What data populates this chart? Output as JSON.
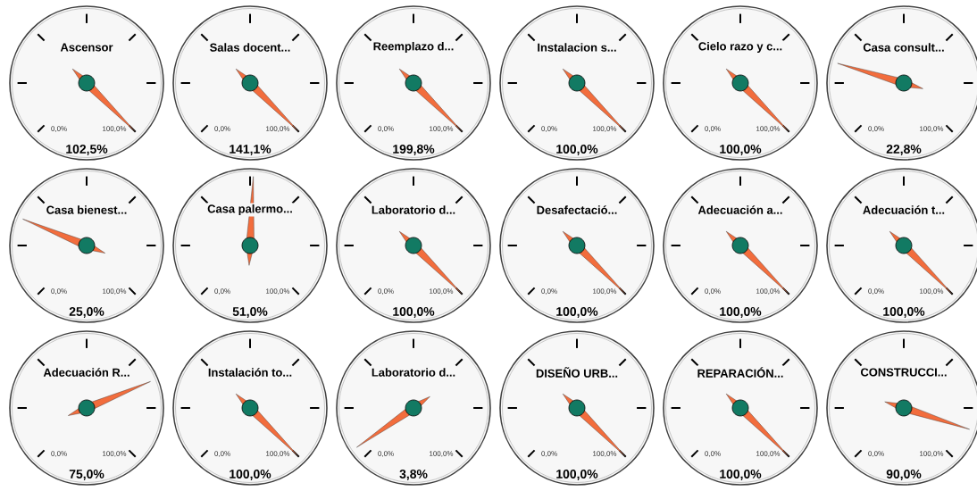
{
  "chart_data": [
    {
      "type": "other",
      "title": "Ascensor",
      "values": [
        102.5
      ],
      "value_labels": [
        "102,5%"
      ],
      "annotations": [
        "0,0%",
        "100,0%"
      ]
    },
    {
      "type": "other",
      "title": "Salas docent...",
      "values": [
        141.1
      ],
      "value_labels": [
        "141,1%"
      ],
      "annotations": [
        "0,0%",
        "100,0%"
      ]
    },
    {
      "type": "other",
      "title": "Reemplazo d...",
      "values": [
        199.8
      ],
      "value_labels": [
        "199,8%"
      ],
      "annotations": [
        "0,0%",
        "100,0%"
      ]
    },
    {
      "type": "other",
      "title": "Instalacion s...",
      "values": [
        100.0
      ],
      "value_labels": [
        "100,0%"
      ],
      "annotations": [
        "0,0%",
        "100,0%"
      ]
    },
    {
      "type": "other",
      "title": "Cielo razo y c...",
      "values": [
        100.0
      ],
      "value_labels": [
        "100,0%"
      ],
      "annotations": [
        "0,0%",
        "100,0%"
      ]
    },
    {
      "type": "other",
      "title": "Casa consult...",
      "values": [
        22.8
      ],
      "value_labels": [
        "22,8%"
      ],
      "annotations": [
        "0,0%",
        "100,0%"
      ]
    },
    {
      "type": "other",
      "title": "Casa bienest...",
      "values": [
        25.0
      ],
      "value_labels": [
        "25,0%"
      ],
      "annotations": [
        "0,0%",
        "100,0%"
      ]
    },
    {
      "type": "other",
      "title": "Casa palermo...",
      "values": [
        51.0
      ],
      "value_labels": [
        "51,0%"
      ],
      "annotations": [
        "0,0%",
        "100,0%"
      ]
    },
    {
      "type": "other",
      "title": "Laboratorio d...",
      "values": [
        100.0
      ],
      "value_labels": [
        "100,0%"
      ],
      "annotations": [
        "0,0%",
        "100,0%"
      ]
    },
    {
      "type": "other",
      "title": "Desafectació...",
      "values": [
        100.0
      ],
      "value_labels": [
        "100,0%"
      ],
      "annotations": [
        "0,0%",
        "100,0%"
      ]
    },
    {
      "type": "other",
      "title": "Adecuación a...",
      "values": [
        100.0
      ],
      "value_labels": [
        "100,0%"
      ],
      "annotations": [
        "0,0%",
        "100,0%"
      ]
    },
    {
      "type": "other",
      "title": "Adecuación t...",
      "values": [
        100.0
      ],
      "value_labels": [
        "100,0%"
      ],
      "annotations": [
        "0,0%",
        "100,0%"
      ]
    },
    {
      "type": "other",
      "title": "Adecuación R...",
      "values": [
        75.0
      ],
      "value_labels": [
        "75,0%"
      ],
      "annotations": [
        "0,0%",
        "100,0%"
      ]
    },
    {
      "type": "other",
      "title": "Instalación to...",
      "values": [
        100.0
      ],
      "value_labels": [
        "100,0%"
      ],
      "annotations": [
        "0,0%",
        "100,0%"
      ]
    },
    {
      "type": "other",
      "title": "Laboratorio d...",
      "values": [
        3.8
      ],
      "value_labels": [
        "3,8%"
      ],
      "annotations": [
        "0,0%",
        "100,0%"
      ]
    },
    {
      "type": "other",
      "title": "DISEÑO URB...",
      "values": [
        100.0
      ],
      "value_labels": [
        "100,0%"
      ],
      "annotations": [
        "0,0%",
        "100,0%"
      ]
    },
    {
      "type": "other",
      "title": "REPARACIÓN...",
      "values": [
        100.0
      ],
      "value_labels": [
        "100,0%"
      ],
      "annotations": [
        "0,0%",
        "100,0%"
      ]
    },
    {
      "type": "other",
      "title": "CONSTRUCCI...",
      "values": [
        90.0
      ],
      "value_labels": [
        "90,0%"
      ],
      "annotations": [
        "0,0%",
        "100,0%"
      ]
    }
  ]
}
